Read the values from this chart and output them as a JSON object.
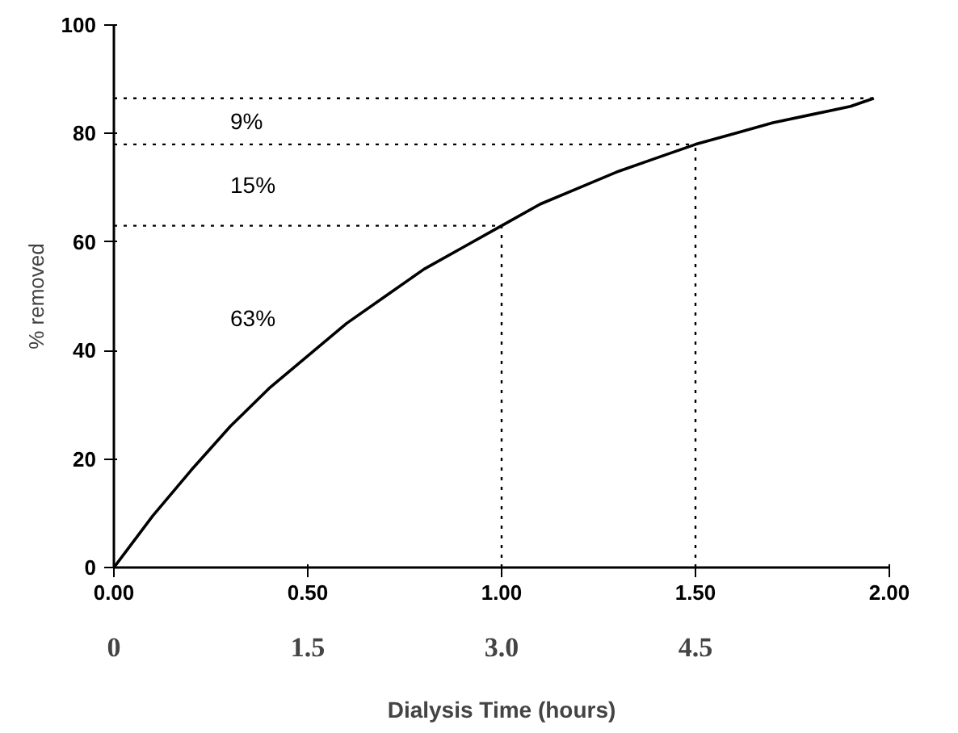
{
  "chart_data": {
    "type": "line",
    "xlabel": "Dialysis Time (hours)",
    "ylabel": "% removed",
    "x": [
      0,
      0.1,
      0.2,
      0.3,
      0.4,
      0.5,
      0.6,
      0.7,
      0.8,
      0.9,
      1.0,
      1.1,
      1.2,
      1.3,
      1.4,
      1.5,
      1.6,
      1.7,
      1.8,
      1.9,
      1.96
    ],
    "series": [
      {
        "color": "#000000",
        "values": [
          0,
          9.5,
          18,
          26,
          33,
          39,
          45,
          50,
          55,
          59,
          63,
          67,
          70,
          73,
          75.5,
          78,
          80,
          82,
          83.5,
          85,
          86.5
        ]
      }
    ],
    "xlim": [
      0,
      2
    ],
    "xticks": [
      {
        "value": 0,
        "label": "0.00"
      },
      {
        "value": 0.5,
        "label": "0.50"
      },
      {
        "value": 1,
        "label": "1.00"
      },
      {
        "value": 1.5,
        "label": "1.50"
      },
      {
        "value": 2,
        "label": "2.00"
      }
    ],
    "x2lim": [
      0,
      6
    ],
    "x2ticks": [
      0,
      1.5,
      {
        "value": 3,
        "label": "3.0"
      },
      4.5
    ],
    "ylim": [
      0,
      100
    ],
    "yticks": [
      0,
      20,
      40,
      60,
      80,
      100
    ],
    "ref_lines": [
      {
        "axis": "y",
        "value": 86.5,
        "line_style": "dotted"
      },
      {
        "axis": "y",
        "value": 78,
        "line_style": "dotted"
      },
      {
        "axis": "y",
        "value": 63,
        "line_style": "dotted"
      },
      {
        "axis": "x",
        "value": 1.0,
        "line_style": "dotted"
      },
      {
        "axis": "x",
        "value": 1.5,
        "line_style": "dotted"
      }
    ],
    "annotations": [
      "9%",
      "15%",
      "63%"
    ],
    "grid": false,
    "marker": "none",
    "line_style": "solid"
  }
}
